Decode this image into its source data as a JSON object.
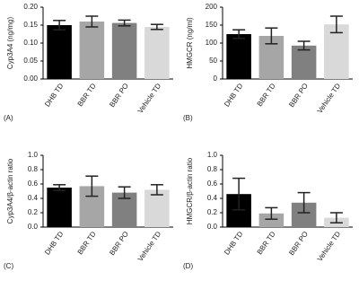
{
  "chart_data": [
    {
      "type": "bar",
      "label": "(A)",
      "ylabel": "Cyp3A4 (ng/mg)",
      "categories": [
        "DHB TD",
        "BBR TD",
        "BBR PO",
        "Vehicle TD"
      ],
      "values": [
        0.15,
        0.16,
        0.156,
        0.145
      ],
      "errors": [
        0.013,
        0.015,
        0.008,
        0.007
      ],
      "colors": [
        "#000000",
        "#a6a6a6",
        "#808080",
        "#d9d9d9"
      ],
      "ylim": [
        0,
        0.2
      ],
      "yticks": [
        {
          "value": 0,
          "label": "0.00"
        },
        0.05,
        {
          "value": 0.1,
          "label": "0.10"
        },
        0.15,
        {
          "value": 0.2,
          "label": "0.20"
        }
      ]
    },
    {
      "type": "bar",
      "label": "(B)",
      "ylabel": "HMGCR (ng/ml)",
      "categories": [
        "DHB TD",
        "BBR TD",
        "BBR PO",
        "Vehicle TD"
      ],
      "values": [
        125,
        120,
        93,
        152
      ],
      "errors": [
        12,
        22,
        12,
        23
      ],
      "colors": [
        "#000000",
        "#a6a6a6",
        "#808080",
        "#d9d9d9"
      ],
      "ylim": [
        0,
        200
      ],
      "yticks": [
        0,
        50,
        100,
        150,
        200
      ]
    },
    {
      "type": "bar",
      "label": "(C)",
      "ylabel": "Cyp3A4/β-actin ratio",
      "categories": [
        "DHB TD",
        "BBR TD",
        "BBR PO",
        "Vehicle TD"
      ],
      "values": [
        0.55,
        0.57,
        0.48,
        0.52
      ],
      "errors": [
        0.04,
        0.14,
        0.08,
        0.07
      ],
      "colors": [
        "#000000",
        "#a6a6a6",
        "#808080",
        "#d9d9d9"
      ],
      "ylim": [
        0,
        1
      ],
      "yticks": [
        {
          "value": 0,
          "label": "0.0"
        },
        0.2,
        0.4,
        0.6,
        0.8,
        {
          "value": 1,
          "label": "1.0"
        }
      ]
    },
    {
      "type": "bar",
      "label": "(D)",
      "ylabel": "HMGCR/β-actin ratio",
      "categories": [
        "DHB TD",
        "BBR TD",
        "BBR PO",
        "Vehicle TD"
      ],
      "values": [
        0.46,
        0.19,
        0.34,
        0.13
      ],
      "errors": [
        0.22,
        0.08,
        0.14,
        0.07
      ],
      "colors": [
        "#000000",
        "#a6a6a6",
        "#808080",
        "#d9d9d9"
      ],
      "ylim": [
        0,
        1
      ],
      "yticks": [
        {
          "value": 0,
          "label": "0.0"
        },
        0.2,
        0.4,
        0.6,
        0.8,
        {
          "value": 1,
          "label": "1.0"
        }
      ]
    }
  ]
}
